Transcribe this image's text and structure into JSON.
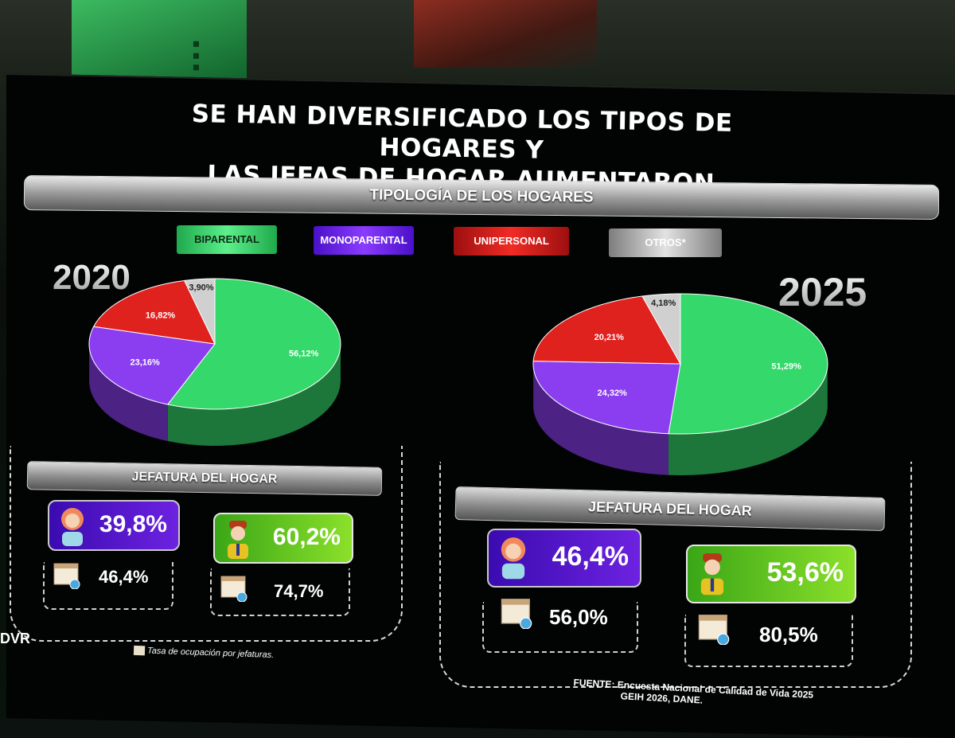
{
  "title_line1": "SE HAN DIVERSIFICADO LOS TIPOS DE HOGARES Y",
  "title_line2": "LAS JEFAS DE HOGAR AUMENTARON",
  "section_title": "TIPOLOGÍA DE LOS HOGARES",
  "legend": [
    {
      "label": "BIPARENTAL",
      "color": "#35d86a"
    },
    {
      "label": "MONOPARENTAL",
      "color": "#7a2af0"
    },
    {
      "label": "UNIPERSONAL",
      "color": "#e0221f"
    },
    {
      "label": "OTROS*",
      "color": "#c9c9c9"
    }
  ],
  "chart_data": [
    {
      "type": "pie",
      "title": "2020",
      "categories": [
        "BIPARENTAL",
        "MONOPARENTAL",
        "UNIPERSONAL",
        "OTROS*"
      ],
      "values": [
        56.12,
        23.16,
        16.82,
        3.9
      ],
      "labels": [
        "56,12%",
        "23,16%",
        "16,82%",
        "3,90%"
      ],
      "colors": [
        "#35d86a",
        "#8b3ef0",
        "#e0221f",
        "#d0d0d0"
      ]
    },
    {
      "type": "pie",
      "title": "2025",
      "categories": [
        "BIPARENTAL",
        "MONOPARENTAL",
        "UNIPERSONAL",
        "OTROS*"
      ],
      "values": [
        51.29,
        24.32,
        20.21,
        4.18
      ],
      "labels": [
        "51,29%",
        "24,32%",
        "20,21%",
        "4,18%"
      ],
      "colors": [
        "#35d86a",
        "#8b3ef0",
        "#e0221f",
        "#d0d0d0"
      ]
    }
  ],
  "left": {
    "year": "2020",
    "jefatura_title": "JEFATURA DEL HOGAR",
    "female_share": "39,8%",
    "male_share": "60,2%",
    "female_occupation": "46,4%",
    "male_occupation": "74,7%"
  },
  "right": {
    "year": "2025",
    "jefatura_title": "JEFATURA DEL HOGAR",
    "female_share": "46,4%",
    "male_share": "53,6%",
    "female_occupation": "56,0%",
    "male_occupation": "80,5%"
  },
  "note": "Tasa de ocupación por jefaturas.",
  "source_label": "FUENTE:",
  "source_text_1": "Encuesta Nacional de Calidad de Vida 2025",
  "source_text_2": "GEIH 2026, DANE.",
  "brand": "DVR"
}
